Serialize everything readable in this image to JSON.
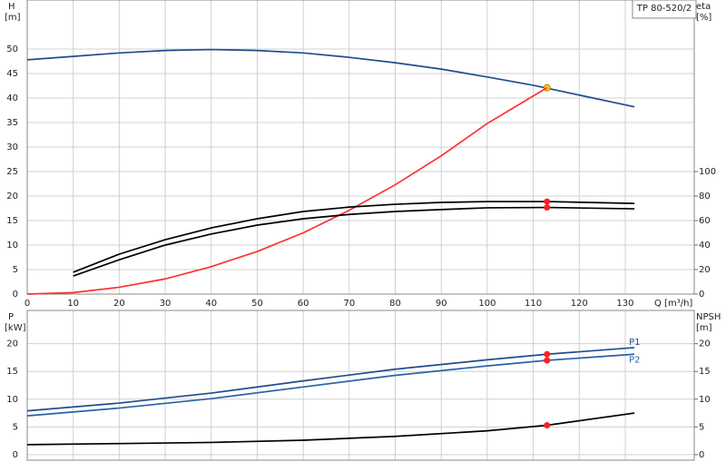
{
  "chart_data": [
    {
      "type": "line",
      "title": "TP 80-520/2",
      "ylabel": "H",
      "yunit": "[m]",
      "y2label": "eta",
      "y2unit": "[%]",
      "xlabel": "Q [m³/h]",
      "xlim": [
        0,
        145
      ],
      "xticks": [
        0,
        10,
        20,
        30,
        40,
        50,
        60,
        70,
        80,
        90,
        100,
        110,
        120,
        130
      ],
      "ylim": [
        0,
        60
      ],
      "yticks": [
        0,
        5,
        10,
        15,
        20,
        25,
        30,
        35,
        40,
        45,
        50
      ],
      "y2lim": [
        0,
        240
      ],
      "y2ticks": [
        0,
        20,
        40,
        60,
        80,
        100
      ],
      "grid": true,
      "series": [
        {
          "color": "#1f4e8c",
          "x": [
            0,
            10,
            20,
            30,
            40,
            50,
            60,
            70,
            80,
            90,
            100,
            110,
            120,
            132
          ],
          "values": [
            47.8,
            48.5,
            49.2,
            49.7,
            49.9,
            49.7,
            49.2,
            48.3,
            47.2,
            45.9,
            44.3,
            42.6,
            40.6,
            38.2
          ],
          "duty": {
            "x": 113,
            "y": 42.1,
            "color": "#ffcc00"
          }
        },
        {
          "color": "#ff3030",
          "x": [
            0,
            10,
            20,
            30,
            40,
            50,
            60,
            70,
            80,
            90,
            100,
            113
          ],
          "values": [
            0,
            0.3,
            1.4,
            3.1,
            5.6,
            8.7,
            12.5,
            17.1,
            22.3,
            28.2,
            34.8,
            42.1
          ]
        },
        {
          "color": "#000000",
          "axis": "y2",
          "x": [
            10,
            20,
            30,
            40,
            50,
            60,
            70,
            80,
            90,
            100,
            113,
            132
          ],
          "values": [
            17.8,
            32.6,
            44.4,
            54,
            61.5,
            67.4,
            71,
            73.3,
            74.8,
            75.5,
            75.5,
            74
          ],
          "duty": {
            "x": 113,
            "y": 75.5,
            "color": "#ff2020"
          }
        },
        {
          "color": "#000000",
          "axis": "y2",
          "x": [
            10,
            20,
            30,
            40,
            50,
            60,
            70,
            80,
            90,
            100,
            113,
            132
          ],
          "values": [
            14.8,
            28,
            40,
            49,
            56.3,
            61.5,
            65,
            67.4,
            69,
            70.4,
            70.7,
            69.6
          ],
          "duty": {
            "x": 113,
            "y": 70.7,
            "color": "#ff2020"
          }
        }
      ]
    },
    {
      "type": "line",
      "ylabel": "P",
      "yunit": "[kW]",
      "y2label": "NPSH",
      "y2unit": "[m]",
      "xlim": [
        0,
        145
      ],
      "xticks": [
        0,
        10,
        20,
        30,
        40,
        50,
        60,
        70,
        80,
        90,
        100,
        110,
        120,
        130
      ],
      "ylim": [
        -1,
        26
      ],
      "yticks": [
        0,
        5,
        10,
        15,
        20
      ],
      "y2lim": [
        -1,
        26
      ],
      "y2ticks": [
        0,
        5,
        10,
        15,
        20
      ],
      "grid": true,
      "series": [
        {
          "name": "P1",
          "color": "#1f4e8c",
          "x": [
            0,
            20,
            40,
            60,
            80,
            100,
            113,
            132
          ],
          "values": [
            7.9,
            9.3,
            11.1,
            13.3,
            15.4,
            17.1,
            18.1,
            19.3
          ],
          "duty": {
            "x": 113,
            "y": 18.1,
            "color": "#ff2020"
          }
        },
        {
          "name": "P2",
          "color": "#2a62a8",
          "x": [
            0,
            20,
            40,
            60,
            80,
            100,
            113,
            132
          ],
          "values": [
            7.0,
            8.4,
            10.1,
            12.2,
            14.3,
            16.0,
            17.0,
            18.1
          ],
          "duty": {
            "x": 113,
            "y": 17.0,
            "color": "#ff2020"
          }
        },
        {
          "color": "#000000",
          "axis": "y2",
          "x": [
            0,
            20,
            40,
            60,
            80,
            100,
            113,
            132
          ],
          "values": [
            1.8,
            2.0,
            2.2,
            2.6,
            3.3,
            4.3,
            5.3,
            7.5
          ],
          "duty": {
            "x": 113,
            "y": 5.3,
            "color": "#ff2020"
          }
        }
      ]
    }
  ]
}
